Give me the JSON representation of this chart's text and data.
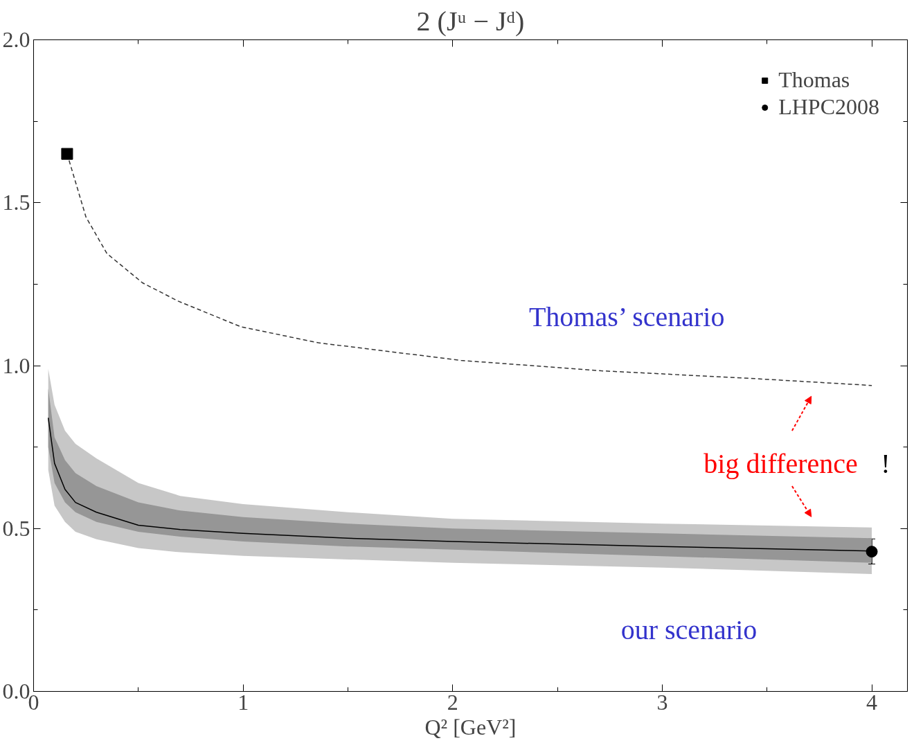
{
  "chart_data": {
    "type": "line",
    "title": "2 (Jᵘ − Jᵈ)",
    "xlabel": "Q² [GeV²]",
    "xlim": [
      0,
      4.17
    ],
    "ylim": [
      0,
      2.0
    ],
    "xticks": [
      0,
      1,
      2,
      3,
      4
    ],
    "yticks": [
      {
        "value": 0,
        "label": "0.0"
      },
      0.5,
      {
        "value": 1,
        "label": "1.0"
      },
      1.5,
      {
        "value": 2,
        "label": "2.0"
      }
    ],
    "grid": false,
    "legend": "top right",
    "line_style": "solid",
    "series": [
      {
        "color": "#000000",
        "x": [
          0.07,
          0.1,
          0.15,
          0.2,
          0.3,
          0.5,
          0.7,
          1,
          1.5,
          2,
          3,
          4
        ],
        "values": [
          0.84,
          0.7,
          0.62,
          0.58,
          0.55,
          0.51,
          0.497,
          0.485,
          0.47,
          0.46,
          0.445,
          0.431
        ],
        "lower": [
          0.68,
          0.57,
          0.52,
          0.49,
          0.467,
          0.44,
          0.427,
          0.416,
          0.405,
          0.395,
          0.38,
          0.36
        ],
        "upper": [
          0.99,
          0.88,
          0.8,
          0.76,
          0.715,
          0.64,
          0.6,
          0.575,
          0.55,
          0.53,
          0.515,
          0.503
        ]
      },
      {
        "color": "#969696",
        "x": [
          0.07,
          0.1,
          0.15,
          0.2,
          0.3,
          0.5,
          0.7,
          1,
          1.5,
          2,
          3,
          4
        ],
        "values": [
          null,
          null,
          null,
          null,
          null,
          null,
          null,
          null,
          null,
          null,
          null,
          null
        ],
        "lower": [
          0.75,
          0.64,
          0.58,
          0.55,
          0.52,
          0.49,
          0.475,
          0.46,
          0.445,
          0.435,
          0.415,
          0.395
        ],
        "upper": [
          0.93,
          0.78,
          0.71,
          0.67,
          0.63,
          0.58,
          0.555,
          0.535,
          0.515,
          0.5,
          0.485,
          0.47
        ]
      },
      {
        "color": "#333333",
        "line_style": "dashed",
        "x": [
          0.16,
          0.25,
          0.35,
          0.52,
          0.69,
          0.99,
          1.36,
          2.04,
          2.71,
          3.39,
          4.0
        ],
        "values": [
          1.65,
          1.456,
          1.344,
          1.254,
          1.198,
          1.119,
          1.07,
          1.016,
          0.984,
          0.962,
          0.939
        ]
      },
      {
        "type": "scatter",
        "name": "Thomas",
        "color": "#000000",
        "marker": "square",
        "x": [
          0.16
        ],
        "values": [
          1.65
        ]
      },
      {
        "type": "scatter",
        "name": "LHPC2008",
        "color": "#000000",
        "marker": "circle",
        "x": [
          4.0
        ],
        "values": [
          0.429
        ],
        "errors": [
          [
            0.391,
            0.468
          ]
        ]
      }
    ],
    "annotations": [
      "Thomas’ scenario",
      "our scenario",
      "big difference",
      "!"
    ]
  }
}
